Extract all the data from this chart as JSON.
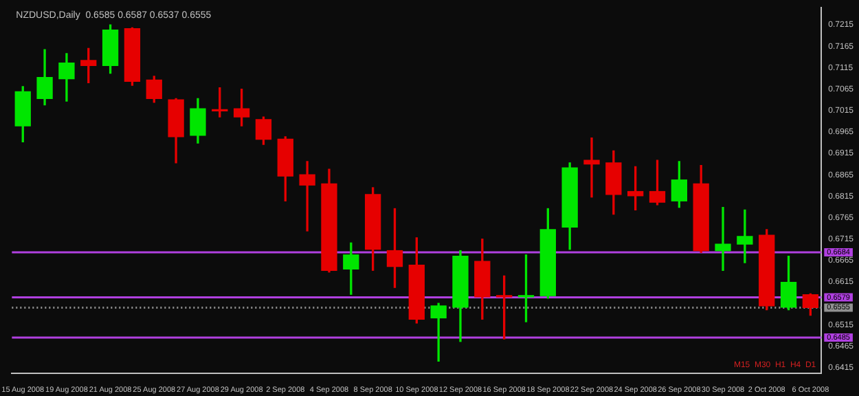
{
  "chart_data": {
    "type": "candlestick",
    "title": "NZDUSD,Daily  0.6585 0.6587 0.6537 0.6555",
    "categories": [
      "15 Aug 2008",
      null,
      "19 Aug 2008",
      null,
      "21 Aug 2008",
      null,
      "25 Aug 2008",
      null,
      "27 Aug 2008",
      null,
      "29 Aug 2008",
      null,
      "2 Sep 2008",
      null,
      "4 Sep 2008",
      null,
      "8 Sep 2008",
      null,
      "10 Sep 2008",
      null,
      "12 Sep 2008",
      null,
      "16 Sep 2008",
      null,
      "18 Sep 2008",
      null,
      "22 Sep 2008",
      null,
      "24 Sep 2008",
      null,
      "26 Sep 2008",
      null,
      "30 Sep 2008",
      null,
      "2 Oct 2008",
      null,
      "6 Oct 2008"
    ],
    "ohlc": [
      [
        0.6979,
        0.7071,
        0.6942,
        0.7059
      ],
      [
        0.7043,
        0.7157,
        0.7028,
        0.7092
      ],
      [
        0.7089,
        0.7148,
        0.7037,
        0.7126
      ],
      [
        0.7132,
        0.716,
        0.708,
        0.712
      ],
      [
        0.712,
        0.7215,
        0.7102,
        0.7203
      ],
      [
        0.7206,
        0.7208,
        0.7074,
        0.7083
      ],
      [
        0.7086,
        0.7095,
        0.7034,
        0.7043
      ],
      [
        0.704,
        0.7043,
        0.6893,
        0.6954
      ],
      [
        0.6957,
        0.7043,
        0.6939,
        0.7019
      ],
      [
        0.7017,
        0.7068,
        0.7,
        0.7014
      ],
      [
        0.7019,
        0.7065,
        0.6979,
        0.7
      ],
      [
        0.6994,
        0.7,
        0.6936,
        0.6948
      ],
      [
        0.6948,
        0.6954,
        0.6804,
        0.6862
      ],
      [
        0.6865,
        0.6896,
        0.6734,
        0.6841
      ],
      [
        0.6844,
        0.6878,
        0.6638,
        0.6642
      ],
      [
        0.6645,
        0.6706,
        0.6586,
        0.6678
      ],
      [
        0.6819,
        0.6835,
        0.6642,
        0.6691
      ],
      [
        0.6688,
        0.6786,
        0.6602,
        0.6651
      ],
      [
        0.6654,
        0.6718,
        0.6519,
        0.6528
      ],
      [
        0.6531,
        0.6565,
        0.643,
        0.6559
      ],
      [
        0.6556,
        0.6688,
        0.6476,
        0.6675
      ],
      [
        0.6663,
        0.6715,
        0.6528,
        0.658
      ],
      [
        0.6583,
        0.6629,
        0.6482,
        0.658
      ],
      [
        0.658,
        0.6678,
        0.6522,
        0.6583
      ],
      [
        0.6583,
        0.6786,
        0.6577,
        0.6737
      ],
      [
        0.6743,
        0.6893,
        0.6691,
        0.6881
      ],
      [
        0.6899,
        0.6951,
        0.6813,
        0.689
      ],
      [
        0.6893,
        0.6921,
        0.6773,
        0.6819
      ],
      [
        0.6826,
        0.6884,
        0.6783,
        0.6816
      ],
      [
        0.6826,
        0.6899,
        0.6795,
        0.6801
      ],
      [
        0.6804,
        0.6896,
        0.6789,
        0.6853
      ],
      [
        0.6844,
        0.6887,
        0.6684,
        0.6688
      ],
      [
        0.6688,
        0.6789,
        0.6642,
        0.6703
      ],
      [
        0.6703,
        0.6783,
        0.666,
        0.6721
      ],
      [
        0.6724,
        0.6737,
        0.655,
        0.6559
      ],
      [
        0.6556,
        0.6675,
        0.655,
        0.6614
      ],
      [
        0.6585,
        0.6587,
        0.6537,
        0.6555
      ]
    ],
    "colors": [
      "#00e600",
      "#00e600",
      "#00e600",
      "#e60000",
      "#00e600",
      "#e60000",
      "#e60000",
      "#e60000",
      "#00e600",
      "#e60000",
      "#e60000",
      "#e60000",
      "#e60000",
      "#e60000",
      "#e60000",
      "#00e600",
      "#e60000",
      "#e60000",
      "#e60000",
      "#00e600",
      "#00e600",
      "#e60000",
      "#e60000",
      "#00e600",
      "#00e600",
      "#00e600",
      "#e60000",
      "#e60000",
      "#e60000",
      "#e60000",
      "#00e600",
      "#e60000",
      "#00e600",
      "#00e600",
      "#e60000",
      "#00e600",
      "#e60000"
    ],
    "ylim": [
      0.6402,
      0.7255
    ],
    "yticks": [
      0.7215,
      0.7165,
      0.7115,
      0.7065,
      0.7015,
      0.6965,
      0.6915,
      0.6865,
      0.6815,
      0.6765,
      0.6715,
      0.6665,
      0.6615,
      0.6515,
      0.6465,
      0.6415
    ],
    "ref_lines": [
      {
        "axis": "y",
        "value": 0.6684,
        "label": "0.6684",
        "color": "#b040e0",
        "line_style": "solid"
      },
      {
        "axis": "y",
        "value": 0.6579,
        "label": "0.6579",
        "color": "#b040e0",
        "line_style": "solid"
      },
      {
        "axis": "y",
        "value": 0.6485,
        "label": "0.6485",
        "color": "#b040e0",
        "line_style": "solid"
      },
      {
        "axis": "y",
        "value": 0.6555,
        "label": "0.6555",
        "color": "#909090",
        "line_style": "dotted"
      }
    ],
    "annotations": [
      "M15  M30  H1  H4  D1"
    ]
  }
}
